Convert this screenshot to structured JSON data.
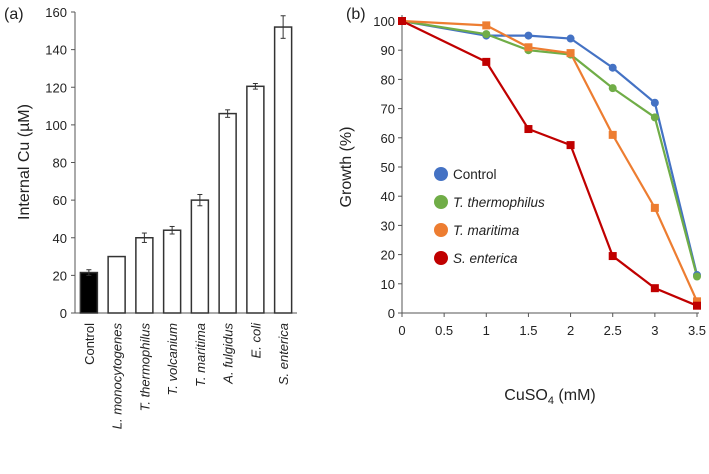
{
  "chart_data": [
    {
      "type": "bar",
      "panel_label": "(a)",
      "title": "",
      "xlabel": "",
      "ylabel": "Internal Cu (µM)",
      "ylim": [
        0,
        160
      ],
      "yticks": [
        "0",
        "20",
        "40",
        "60",
        "80",
        "100",
        "120",
        "140",
        "160"
      ],
      "categories": [
        "Control",
        "L. monocytogenes",
        "T. thermophilus",
        "T. volcanium",
        "T. maritima",
        "A. fulgidus",
        "E. coli",
        "S. enterica"
      ],
      "italic": [
        false,
        true,
        true,
        true,
        true,
        true,
        true,
        true
      ],
      "values": [
        21.5,
        30,
        40,
        44,
        60,
        106,
        120.5,
        152
      ],
      "errors": [
        1.5,
        0.3,
        2.5,
        2,
        3,
        2,
        1.5,
        6
      ],
      "fills": [
        "#000000",
        "#ffffff",
        "#ffffff",
        "#ffffff",
        "#ffffff",
        "#ffffff",
        "#ffffff",
        "#ffffff"
      ]
    },
    {
      "type": "line",
      "panel_label": "(b)",
      "title": "",
      "xlabel_main": "CuSO",
      "xlabel_sub": "4",
      "xlabel_tail": " (mM)",
      "ylabel": "Growth (%)",
      "xlim": [
        0,
        3.5
      ],
      "ylim": [
        0,
        100
      ],
      "xticks": [
        "0",
        "0.5",
        "1",
        "1.5",
        "2",
        "2.5",
        "3",
        "3.5"
      ],
      "yticks": [
        "0",
        "10",
        "20",
        "30",
        "40",
        "50",
        "60",
        "70",
        "80",
        "90",
        "100"
      ],
      "legend_position": "center-left",
      "x": [
        0,
        1,
        1.5,
        2,
        2.5,
        3,
        3.5
      ],
      "series": [
        {
          "name": "Control",
          "italic": false,
          "color": "#4472c4",
          "marker": "circle",
          "values": [
            100,
            95,
            95,
            94,
            84,
            72,
            13
          ]
        },
        {
          "name": "T. thermophilus",
          "italic": true,
          "color": "#70ad47",
          "marker": "circle",
          "values": [
            100,
            95.5,
            90,
            88.5,
            77,
            67,
            12.5
          ]
        },
        {
          "name": "T. maritima",
          "italic": true,
          "color": "#ed7d31",
          "marker": "square",
          "values": [
            100,
            98.5,
            91,
            89,
            61,
            36,
            4
          ]
        },
        {
          "name": "S. enterica",
          "italic": true,
          "color": "#c00000",
          "marker": "square",
          "values": [
            100,
            86,
            63,
            57.5,
            19.5,
            8.5,
            2.5
          ]
        }
      ]
    }
  ]
}
